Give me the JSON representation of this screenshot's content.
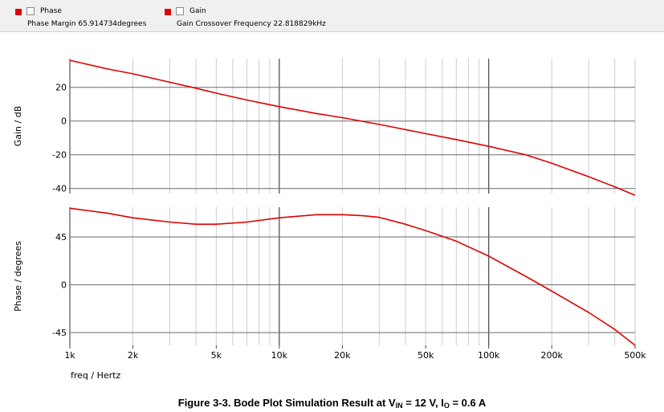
{
  "toolbar": {
    "legend": [
      {
        "name": "Phase",
        "metric_label": "Phase Margin",
        "metric_value": "65.914734degrees"
      },
      {
        "name": "Gain",
        "metric_label": "Gain Crossover Frequency",
        "metric_value": "22.818829kHz"
      }
    ]
  },
  "chart_data": [
    {
      "type": "line",
      "xscale": "log",
      "xlim": [
        1000,
        500000
      ],
      "ylim": [
        -43,
        37
      ],
      "ylabel": "Gain / dB",
      "yticks": [
        20,
        0,
        -20,
        -40
      ],
      "ytick_labels": [
        "20",
        "0",
        "-20",
        "-40"
      ],
      "grid": true,
      "series": [
        {
          "name": "Gain",
          "color": "#e00000",
          "x": [
            1000,
            1500,
            2000,
            3000,
            4000,
            5000,
            7000,
            10000,
            15000,
            20000,
            30000,
            50000,
            70000,
            100000,
            150000,
            200000,
            300000,
            400000,
            500000
          ],
          "y": [
            36,
            31,
            28,
            23,
            19.5,
            16.5,
            12.5,
            8.5,
            4.5,
            2,
            -2,
            -7.5,
            -11,
            -15,
            -20,
            -25,
            -33,
            -39,
            -44
          ]
        }
      ]
    },
    {
      "type": "line",
      "xscale": "log",
      "xlim": [
        1000,
        500000
      ],
      "ylim": [
        -57,
        73
      ],
      "xlabel": "freq / Hertz",
      "ylabel": "Phase / degrees",
      "yticks": [
        45,
        0,
        -45
      ],
      "ytick_labels": [
        "45",
        "0",
        "-45"
      ],
      "xticks": [
        1000,
        2000,
        5000,
        10000,
        20000,
        50000,
        100000,
        200000,
        500000
      ],
      "xtick_labels": [
        "1k",
        "2k",
        "5k",
        "10k",
        "20k",
        "50k",
        "100k",
        "200k",
        "500k"
      ],
      "grid": true,
      "series": [
        {
          "name": "Phase",
          "color": "#e00000",
          "x": [
            1000,
            1500,
            2000,
            3000,
            4000,
            5000,
            7000,
            10000,
            15000,
            20000,
            25000,
            30000,
            40000,
            50000,
            70000,
            100000,
            150000,
            200000,
            300000,
            400000,
            500000
          ],
          "y": [
            72,
            67.5,
            63,
            59,
            57,
            57,
            59,
            63,
            66,
            66,
            65,
            63.5,
            57,
            51,
            41,
            27,
            8,
            -6,
            -26,
            -42,
            -57
          ]
        }
      ]
    }
  ],
  "caption": {
    "prefix": "Figure 3-3. Bode Plot Simulation Result at V",
    "sub1": "IN",
    "mid": " = 12 V, I",
    "sub2": "O",
    "suffix": " = 0.6 A"
  }
}
